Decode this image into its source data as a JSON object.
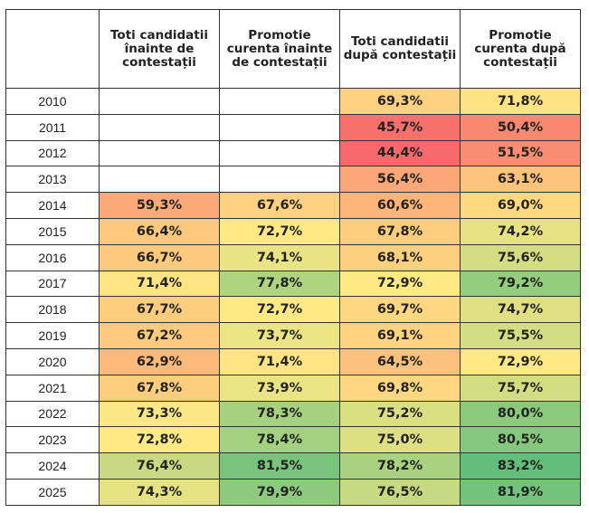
{
  "table": {
    "headers": [
      "",
      "Toti candidatii înainte de contestații",
      "Promotie curenta înainte de contestații",
      "Toti candidatii după contestații",
      "Promotie curenta după contestații"
    ],
    "rows": [
      {
        "year": "2010",
        "cells": [
          {
            "v": "",
            "c": "#ffffff"
          },
          {
            "v": "",
            "c": "#ffffff"
          },
          {
            "v": "69,3%",
            "c": "#fdd17f"
          },
          {
            "v": "71,8%",
            "c": "#fee383"
          }
        ]
      },
      {
        "year": "2011",
        "cells": [
          {
            "v": "",
            "c": "#ffffff"
          },
          {
            "v": "",
            "c": "#ffffff"
          },
          {
            "v": "45,7%",
            "c": "#f8706b"
          },
          {
            "v": "50,4%",
            "c": "#f98870"
          }
        ]
      },
      {
        "year": "2012",
        "cells": [
          {
            "v": "",
            "c": "#ffffff"
          },
          {
            "v": "",
            "c": "#ffffff"
          },
          {
            "v": "44,4%",
            "c": "#f8696b"
          },
          {
            "v": "51,5%",
            "c": "#f98d71"
          }
        ]
      },
      {
        "year": "2013",
        "cells": [
          {
            "v": "",
            "c": "#ffffff"
          },
          {
            "v": "",
            "c": "#ffffff"
          },
          {
            "v": "56,4%",
            "c": "#fba676"
          },
          {
            "v": "63,1%",
            "c": "#fdc37c"
          }
        ]
      },
      {
        "year": "2014",
        "cells": [
          {
            "v": "59,3%",
            "c": "#fbaa77"
          },
          {
            "v": "67,6%",
            "c": "#fdd17f"
          },
          {
            "v": "60,6%",
            "c": "#fcb479"
          },
          {
            "v": "69,0%",
            "c": "#fed980"
          }
        ]
      },
      {
        "year": "2015",
        "cells": [
          {
            "v": "66,4%",
            "c": "#fdc87d"
          },
          {
            "v": "72,7%",
            "c": "#ffe984"
          },
          {
            "v": "67,8%",
            "c": "#fdcd7e"
          },
          {
            "v": "74,2%",
            "c": "#e6e283"
          }
        ]
      },
      {
        "year": "2016",
        "cells": [
          {
            "v": "66,7%",
            "c": "#fdc97d"
          },
          {
            "v": "74,1%",
            "c": "#e8e383"
          },
          {
            "v": "68,1%",
            "c": "#fdd07f"
          },
          {
            "v": "75,6%",
            "c": "#d4dd82"
          }
        ]
      },
      {
        "year": "2017",
        "cells": [
          {
            "v": "71,4%",
            "c": "#fee483"
          },
          {
            "v": "77,8%",
            "c": "#aed47f"
          },
          {
            "v": "72,9%",
            "c": "#ffe984"
          },
          {
            "v": "79,2%",
            "c": "#95cd7e"
          }
        ]
      },
      {
        "year": "2018",
        "cells": [
          {
            "v": "67,7%",
            "c": "#fdcd7e"
          },
          {
            "v": "72,7%",
            "c": "#ffe984"
          },
          {
            "v": "69,7%",
            "c": "#fed780"
          },
          {
            "v": "74,7%",
            "c": "#e0e083"
          }
        ]
      },
      {
        "year": "2019",
        "cells": [
          {
            "v": "67,2%",
            "c": "#fdcb7e"
          },
          {
            "v": "73,7%",
            "c": "#eae483"
          },
          {
            "v": "69,1%",
            "c": "#fed480"
          },
          {
            "v": "75,5%",
            "c": "#d3dd82"
          }
        ]
      },
      {
        "year": "2020",
        "cells": [
          {
            "v": "62,9%",
            "c": "#fcb97a"
          },
          {
            "v": "71,4%",
            "c": "#fee483"
          },
          {
            "v": "64,5%",
            "c": "#fcc17c"
          },
          {
            "v": "72,9%",
            "c": "#ffe984"
          }
        ]
      },
      {
        "year": "2021",
        "cells": [
          {
            "v": "67,8%",
            "c": "#fdcd7e"
          },
          {
            "v": "73,9%",
            "c": "#eae483"
          },
          {
            "v": "69,8%",
            "c": "#fed780"
          },
          {
            "v": "75,7%",
            "c": "#d2dd82"
          }
        ]
      },
      {
        "year": "2022",
        "cells": [
          {
            "v": "73,3%",
            "c": "#fbe884"
          },
          {
            "v": "78,3%",
            "c": "#a6d27f"
          },
          {
            "v": "75,2%",
            "c": "#dadf82"
          },
          {
            "v": "80,0%",
            "c": "#8bca7d"
          }
        ]
      },
      {
        "year": "2023",
        "cells": [
          {
            "v": "72,8%",
            "c": "#ffe984"
          },
          {
            "v": "78,4%",
            "c": "#a4d17f"
          },
          {
            "v": "75,0%",
            "c": "#dcdf82"
          },
          {
            "v": "80,5%",
            "c": "#85c87d"
          }
        ]
      },
      {
        "year": "2024",
        "cells": [
          {
            "v": "76,4%",
            "c": "#c8da81"
          },
          {
            "v": "81,5%",
            "c": "#78c47c"
          },
          {
            "v": "78,2%",
            "c": "#a8d27f"
          },
          {
            "v": "83,2%",
            "c": "#63be7b"
          }
        ]
      },
      {
        "year": "2025",
        "cells": [
          {
            "v": "74,3%",
            "c": "#e5e283"
          },
          {
            "v": "79,9%",
            "c": "#8dca7d"
          },
          {
            "v": "76,5%",
            "c": "#c6da81"
          },
          {
            "v": "81,9%",
            "c": "#73c37c"
          }
        ]
      }
    ]
  }
}
